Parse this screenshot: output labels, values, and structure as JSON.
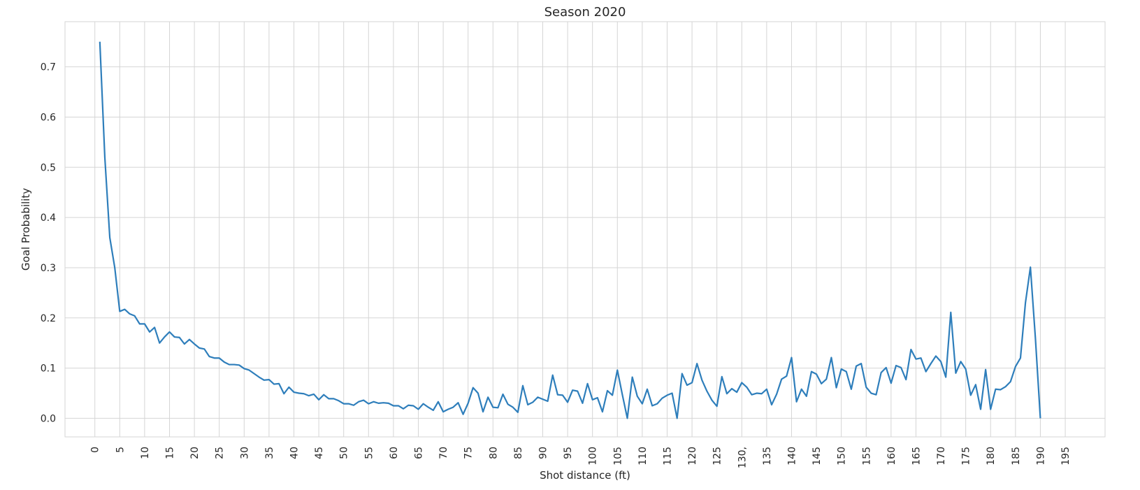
{
  "chart_data": {
    "type": "line",
    "title": "Season 2020",
    "xlabel": "Shot distance (ft)",
    "ylabel": "Goal Probability",
    "xlim": [
      -6,
      203
    ],
    "ylim": [
      -0.037,
      0.79
    ],
    "grid": true,
    "line_color": "#2e7ebb",
    "x_ticks": [
      0,
      5,
      10,
      15,
      20,
      25,
      30,
      35,
      40,
      45,
      50,
      55,
      60,
      65,
      70,
      75,
      80,
      85,
      90,
      95,
      100,
      105,
      110,
      115,
      120,
      125,
      130,
      135,
      140,
      145,
      150,
      155,
      160,
      165,
      170,
      175,
      180,
      185,
      190,
      195
    ],
    "x_tick_labels": [
      "0",
      "5",
      "10",
      "15",
      "20",
      "25",
      "30",
      "35",
      "40",
      "45",
      "50",
      "55",
      "60",
      "65",
      "70",
      "75",
      "80",
      "85",
      "90",
      "95",
      "100",
      "105",
      "110",
      "115",
      "120",
      "125",
      "130,",
      "135",
      "140",
      "145",
      "150",
      "155",
      "160",
      "165",
      "170",
      "175",
      "180",
      "185",
      "190",
      "195"
    ],
    "y_ticks": [
      0.0,
      0.1,
      0.2,
      0.3,
      0.4,
      0.5,
      0.6,
      0.7
    ],
    "y_tick_labels": [
      "0.0",
      "0.1",
      "0.2",
      "0.3",
      "0.4",
      "0.5",
      "0.6",
      "0.7"
    ],
    "series": [
      {
        "x": [
          1,
          2,
          3,
          4,
          5,
          6,
          7,
          8,
          9,
          10,
          11,
          12,
          13,
          14,
          15,
          16,
          17,
          18,
          19,
          20,
          21,
          22,
          23,
          24,
          25,
          26,
          27,
          28,
          29,
          30,
          31,
          32,
          33,
          34,
          35,
          36,
          37,
          38,
          39,
          40,
          41,
          42,
          43,
          44,
          45,
          46,
          47,
          48,
          49,
          50,
          51,
          52,
          53,
          54,
          55,
          56,
          57,
          58,
          59,
          60,
          61,
          62,
          63,
          64,
          65,
          66,
          67,
          68,
          69,
          70,
          71,
          72,
          73,
          74,
          75,
          76,
          77,
          78,
          79,
          80,
          81,
          82,
          83,
          84,
          85,
          86,
          87,
          88,
          89,
          90,
          91,
          92,
          93,
          94,
          95,
          96,
          97,
          98,
          99,
          100,
          101,
          102,
          103,
          104,
          105,
          106,
          107,
          108,
          109,
          110,
          111,
          112,
          113,
          114,
          115,
          116,
          117,
          118,
          119,
          120,
          121,
          122,
          123,
          124,
          125,
          126,
          127,
          128,
          129,
          130,
          131,
          132,
          133,
          134,
          135,
          136,
          137,
          138,
          139,
          140,
          141,
          142,
          143,
          144,
          145,
          146,
          147,
          148,
          149,
          150,
          151,
          152,
          153,
          154,
          155,
          156,
          157,
          158,
          159,
          160,
          161,
          162,
          163,
          164,
          165,
          166,
          167,
          168,
          169,
          170,
          171,
          172,
          173,
          174,
          175,
          176,
          177,
          178,
          179,
          180,
          181,
          182,
          183,
          184,
          185,
          186,
          187,
          188,
          189,
          190
        ],
        "y": [
          0.75,
          0.52,
          0.36,
          0.3,
          0.213,
          0.217,
          0.208,
          0.204,
          0.188,
          0.188,
          0.172,
          0.181,
          0.15,
          0.162,
          0.172,
          0.162,
          0.161,
          0.148,
          0.157,
          0.148,
          0.14,
          0.138,
          0.123,
          0.12,
          0.12,
          0.112,
          0.107,
          0.107,
          0.106,
          0.099,
          0.096,
          0.089,
          0.082,
          0.076,
          0.077,
          0.068,
          0.069,
          0.049,
          0.062,
          0.052,
          0.05,
          0.049,
          0.045,
          0.048,
          0.037,
          0.047,
          0.039,
          0.039,
          0.035,
          0.029,
          0.029,
          0.026,
          0.033,
          0.036,
          0.029,
          0.033,
          0.03,
          0.031,
          0.03,
          0.025,
          0.025,
          0.019,
          0.026,
          0.025,
          0.018,
          0.029,
          0.022,
          0.016,
          0.033,
          0.013,
          0.018,
          0.022,
          0.031,
          0.008,
          0.03,
          0.061,
          0.05,
          0.013,
          0.042,
          0.022,
          0.021,
          0.048,
          0.028,
          0.022,
          0.012,
          0.065,
          0.027,
          0.032,
          0.042,
          0.038,
          0.034,
          0.086,
          0.047,
          0.046,
          0.032,
          0.056,
          0.054,
          0.03,
          0.069,
          0.037,
          0.041,
          0.013,
          0.055,
          0.046,
          0.096,
          0.047,
          0.0,
          0.082,
          0.044,
          0.029,
          0.058,
          0.025,
          0.029,
          0.04,
          0.046,
          0.05,
          0.0,
          0.089,
          0.066,
          0.071,
          0.109,
          0.076,
          0.054,
          0.036,
          0.024,
          0.083,
          0.049,
          0.059,
          0.052,
          0.071,
          0.062,
          0.047,
          0.05,
          0.049,
          0.058,
          0.027,
          0.048,
          0.078,
          0.084,
          0.121,
          0.033,
          0.058,
          0.044,
          0.093,
          0.088,
          0.069,
          0.078,
          0.121,
          0.061,
          0.098,
          0.093,
          0.058,
          0.104,
          0.109,
          0.062,
          0.05,
          0.047,
          0.091,
          0.101,
          0.07,
          0.105,
          0.101,
          0.077,
          0.137,
          0.118,
          0.12,
          0.093,
          0.109,
          0.124,
          0.113,
          0.082,
          0.211,
          0.09,
          0.113,
          0.098,
          0.046,
          0.067,
          0.018,
          0.097,
          0.018,
          0.058,
          0.057,
          0.063,
          0.073,
          0.103,
          0.12,
          0.23,
          0.301,
          0.16,
          0.0
        ]
      }
    ]
  }
}
